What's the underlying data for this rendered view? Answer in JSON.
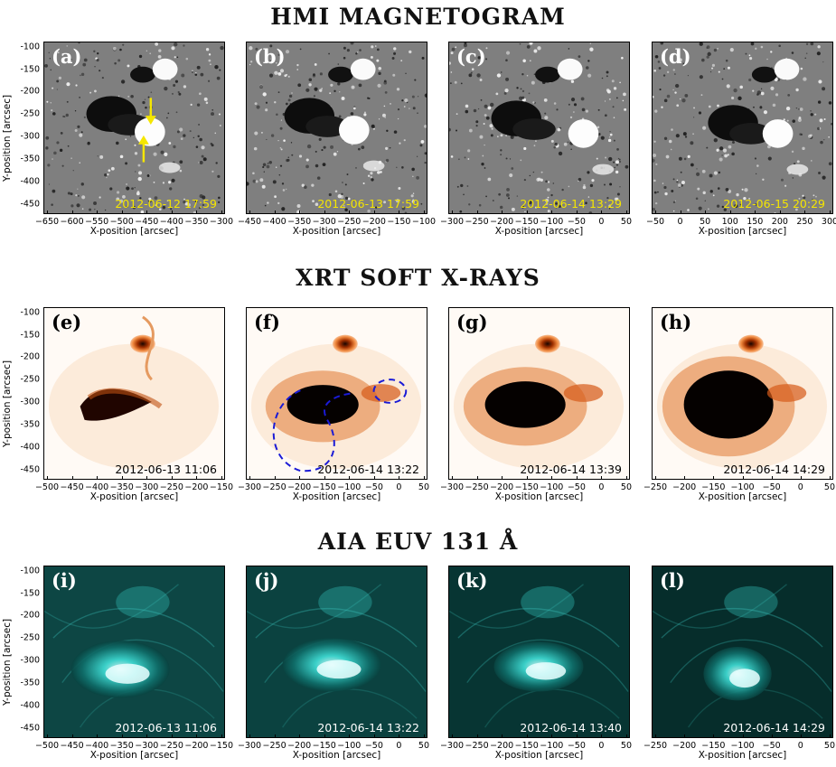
{
  "titles": {
    "hmi": "HMI MAGNETOGRAM",
    "xrt": "XRT SOFT X-RAYS",
    "aia": "AIA EUV 131 Å"
  },
  "axes": {
    "xlabel": "X-position [arcsec]",
    "ylabel": "Y-position [arcsec]"
  },
  "y_ticks": [
    "-100",
    "-150",
    "-200",
    "-250",
    "-300",
    "-350",
    "-400",
    "-450"
  ],
  "panels": [
    {
      "label": "(a)",
      "timestamp": "2012-06-12 17:59",
      "kind": "hmi",
      "xticks": [
        "−650",
        "−600",
        "−550",
        "−500",
        "−450",
        "−400",
        "−350",
        "−300"
      ]
    },
    {
      "label": "(b)",
      "timestamp": "2012-06-13 17:59",
      "kind": "hmi",
      "xticks": [
        "−450",
        "−400",
        "−350",
        "−300",
        "−250",
        "−200",
        "−150",
        "−100"
      ]
    },
    {
      "label": "(c)",
      "timestamp": "2012-06-14 13:29",
      "kind": "hmi",
      "xticks": [
        "−300",
        "−250",
        "−200",
        "−150",
        "−100",
        "−50",
        "0",
        "50"
      ]
    },
    {
      "label": "(d)",
      "timestamp": "2012-06-15 20:29",
      "kind": "hmi",
      "xticks": [
        "−50",
        "0",
        "50",
        "100",
        "150",
        "200",
        "250",
        "300"
      ]
    },
    {
      "label": "(e)",
      "timestamp": "2012-06-13 11:06",
      "kind": "xrt",
      "xticks": [
        "−500",
        "−450",
        "−400",
        "−350",
        "−300",
        "−250",
        "−200",
        "−150"
      ]
    },
    {
      "label": "(f)",
      "timestamp": "2012-06-14 13:22",
      "kind": "xrt",
      "xticks": [
        "−300",
        "−250",
        "−200",
        "−150",
        "−100",
        "−50",
        "0",
        "50"
      ]
    },
    {
      "label": "(g)",
      "timestamp": "2012-06-14 13:39",
      "kind": "xrt",
      "xticks": [
        "−300",
        "−250",
        "−200",
        "−150",
        "−100",
        "−50",
        "0",
        "50"
      ]
    },
    {
      "label": "(h)",
      "timestamp": "2012-06-14 14:29",
      "kind": "xrt",
      "xticks": [
        "−250",
        "−200",
        "−150",
        "−100",
        "−50",
        "0",
        "50"
      ]
    },
    {
      "label": "(i)",
      "timestamp": "2012-06-13 11:06",
      "kind": "aia",
      "xticks": [
        "−500",
        "−450",
        "−400",
        "−350",
        "−300",
        "−250",
        "−200",
        "−150"
      ]
    },
    {
      "label": "(j)",
      "timestamp": "2012-06-14 13:22",
      "kind": "aia",
      "xticks": [
        "−300",
        "−250",
        "−200",
        "−150",
        "−100",
        "−50",
        "0",
        "50"
      ]
    },
    {
      "label": "(k)",
      "timestamp": "2012-06-14 13:40",
      "kind": "aia",
      "xticks": [
        "−300",
        "−250",
        "−200",
        "−150",
        "−100",
        "−50",
        "0",
        "50"
      ]
    },
    {
      "label": "(l)",
      "timestamp": "2012-06-14 14:29",
      "kind": "aia",
      "xticks": [
        "−250",
        "−200",
        "−150",
        "−100",
        "−50",
        "0",
        "50"
      ]
    }
  ],
  "colors": {
    "hmi_stamp": "#f5e600",
    "xrt_stamp": "#000000",
    "aia_stamp": "#ffffff",
    "arrow": "#f5e600",
    "contour": "#1a1ad6"
  }
}
